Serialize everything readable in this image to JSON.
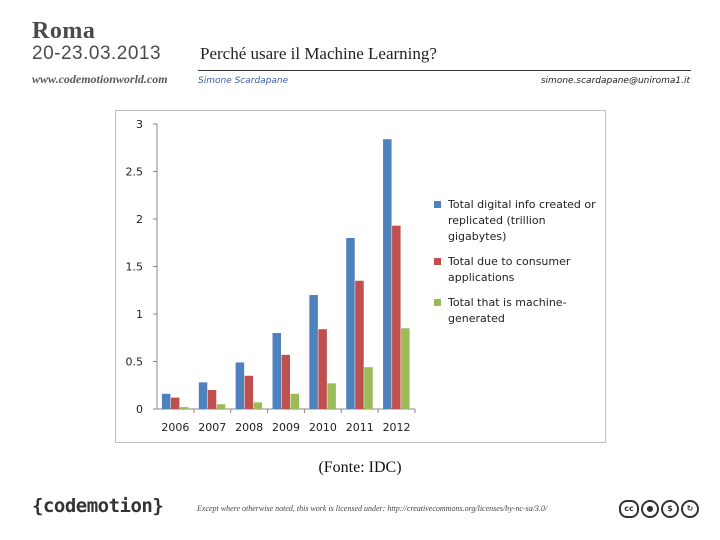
{
  "header": {
    "city": "Roma",
    "dates": "20-23.03.2013",
    "url": "www.codemotionworld.com",
    "title": "Perché usare il Machine Learning?",
    "author": "Simone Scardapane",
    "email": "simone.scardapane@uniroma1.it"
  },
  "colors": {
    "series1": "#4f81bd",
    "series2": "#c0504d",
    "series3": "#9bbb59"
  },
  "chart_data": {
    "type": "bar",
    "title": "",
    "xlabel": "",
    "ylabel": "",
    "categories": [
      "2006",
      "2007",
      "2008",
      "2009",
      "2010",
      "2011",
      "2012"
    ],
    "ylim": [
      0,
      3
    ],
    "yticks": [
      "0",
      "0.5",
      "1",
      "1.5",
      "2",
      "2.5",
      "3"
    ],
    "series": [
      {
        "name": "Total digital info created or replicated (trillion gigabytes)",
        "values": [
          0.16,
          0.28,
          0.49,
          0.8,
          1.2,
          1.8,
          2.84
        ]
      },
      {
        "name": "Total due to consumer applications",
        "values": [
          0.12,
          0.2,
          0.35,
          0.57,
          0.84,
          1.35,
          1.93
        ]
      },
      {
        "name": "Total that is machine-generated",
        "values": [
          0.02,
          0.05,
          0.07,
          0.16,
          0.27,
          0.44,
          0.85
        ]
      }
    ],
    "legend_position": "right"
  },
  "source": "(Fonte: IDC)",
  "footer": {
    "logo": "{codemotion}",
    "license": "Except where otherwise noted, this work is licensed under: http://creativecommons.org/licenses/by-nc-sa/3.0/",
    "cc_icons": [
      "cc",
      "by",
      "nc",
      "sa"
    ]
  }
}
